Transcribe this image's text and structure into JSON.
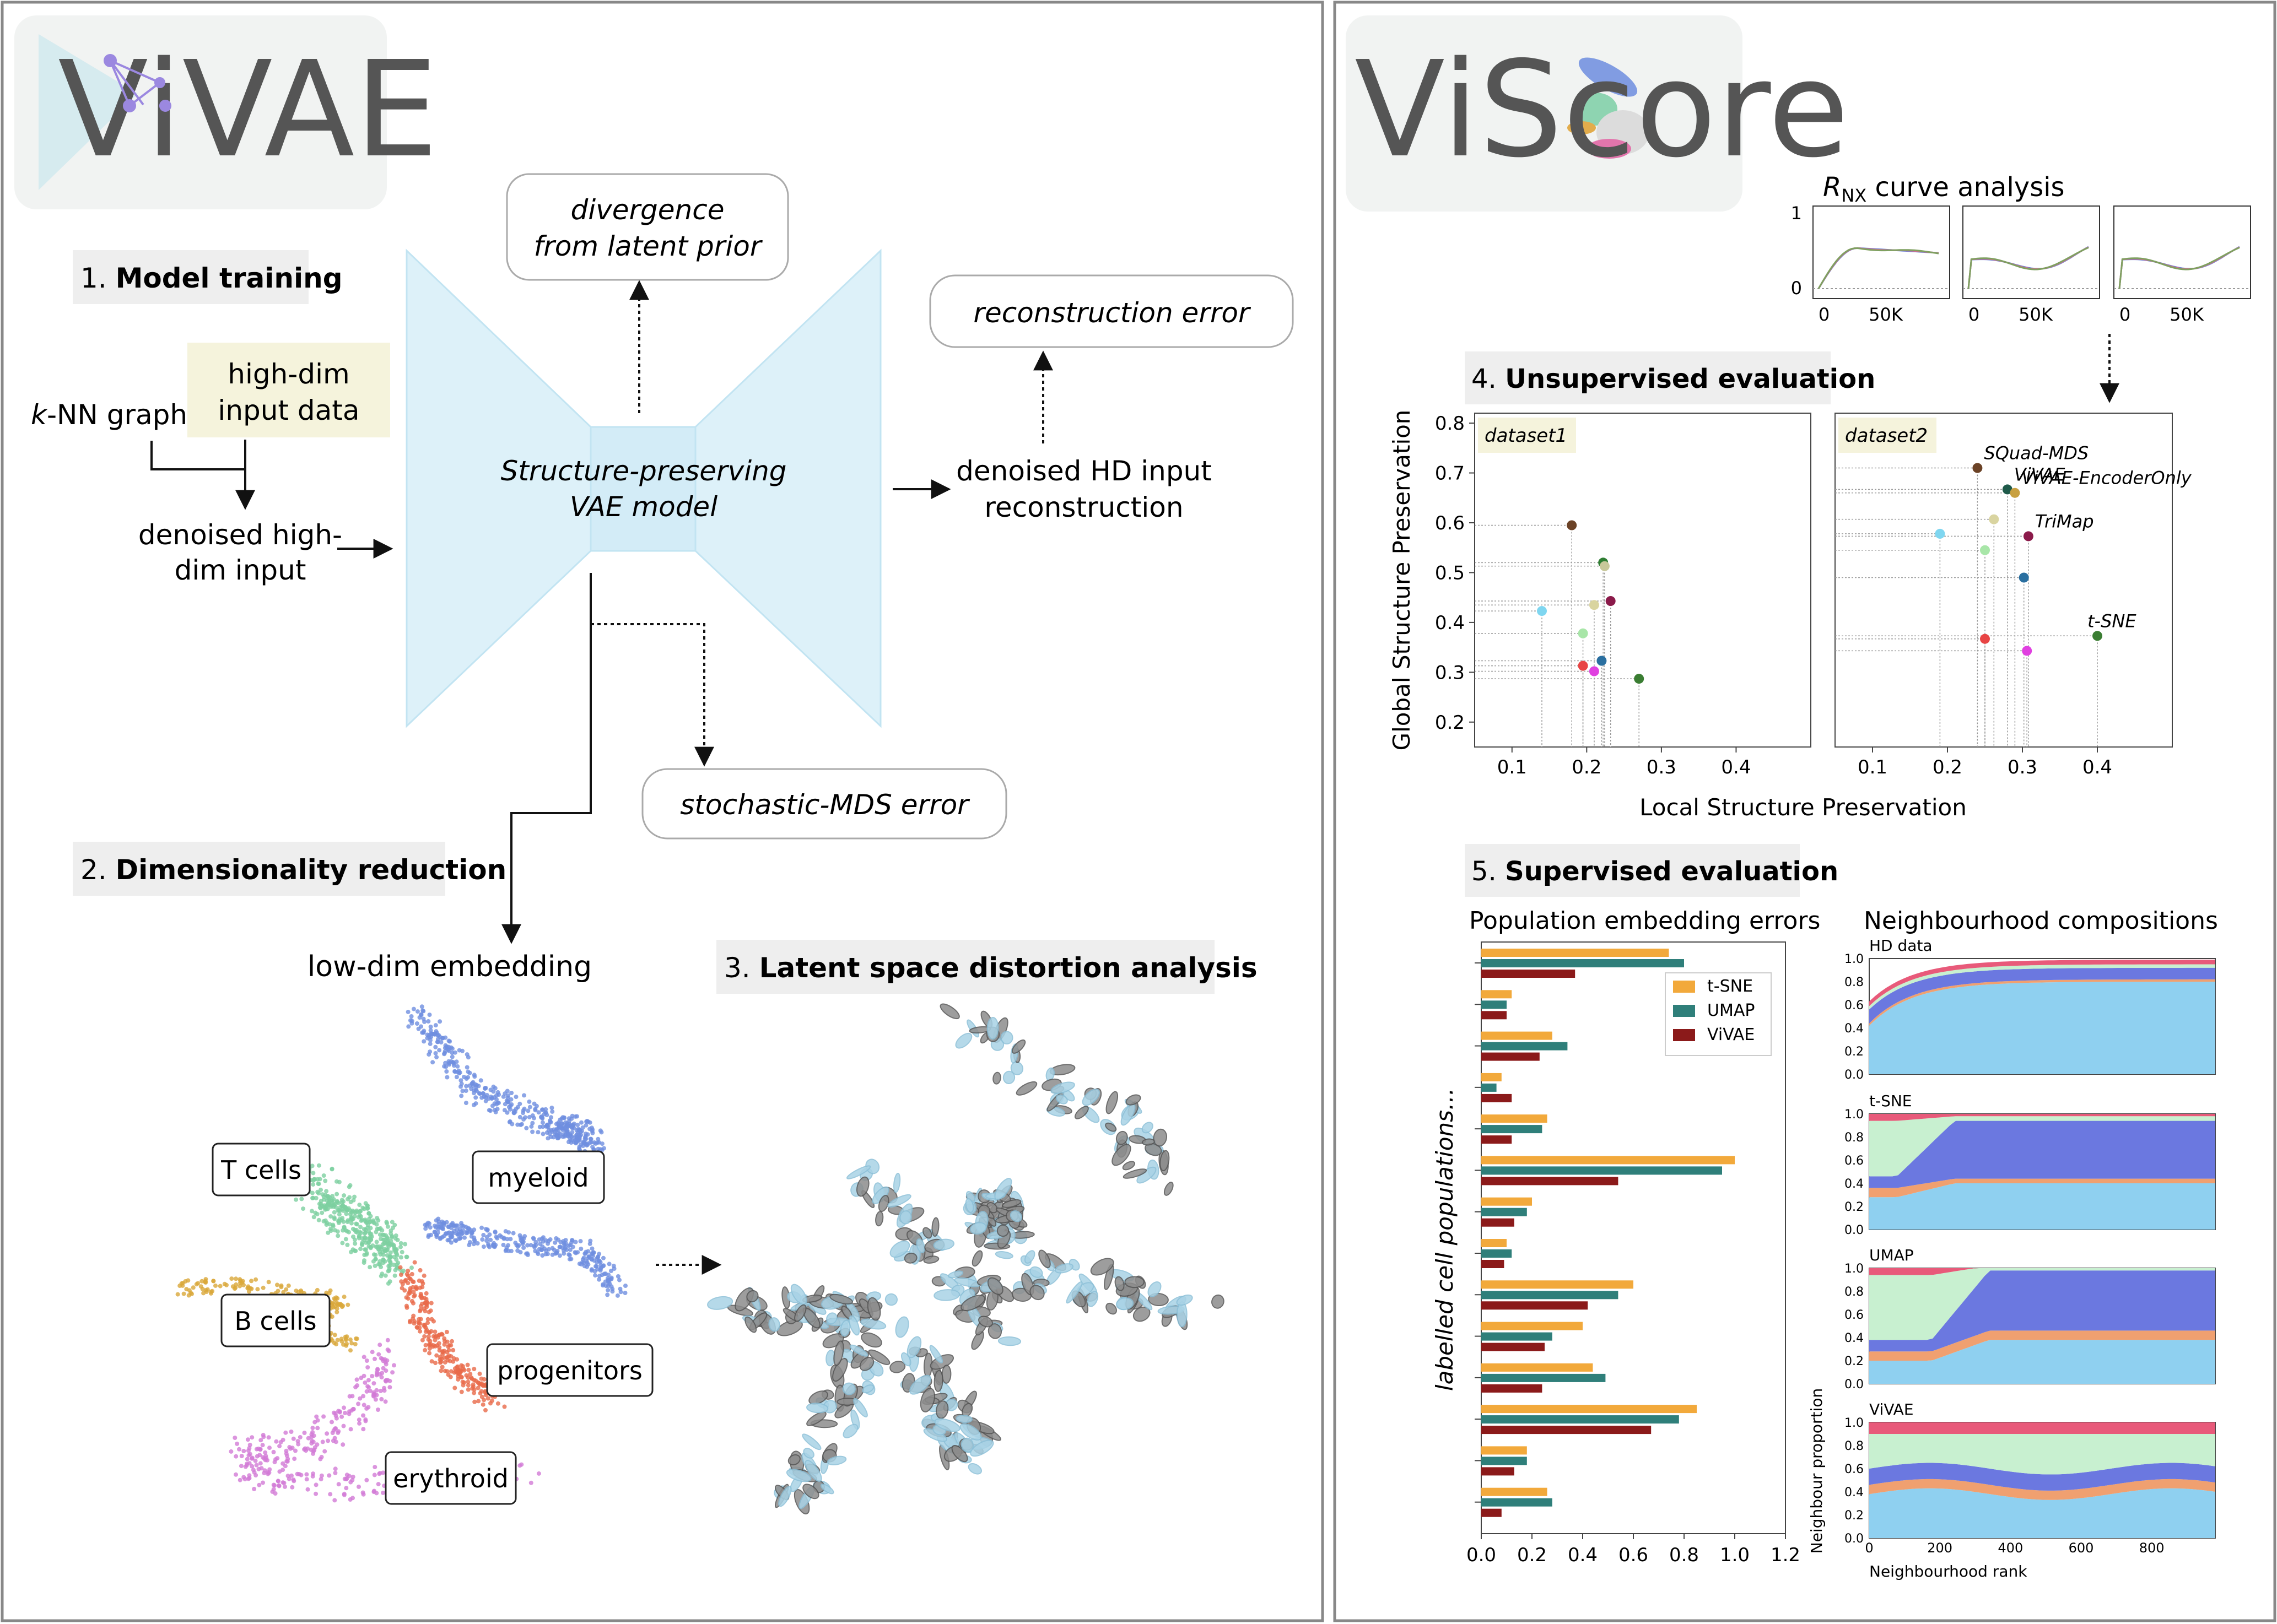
{
  "left_panel": {
    "logo": "ViVAE",
    "step1": {
      "num": "1.",
      "title": "Model training"
    },
    "knn": {
      "k": "k",
      "rest": "-NN graph"
    },
    "highdim": [
      "high-dim",
      "input data"
    ],
    "denoised_input": [
      "denoised high-",
      "dim input"
    ],
    "model": [
      "Structure-preserving",
      "VAE model"
    ],
    "divergence": [
      "divergence",
      "from latent prior"
    ],
    "recon_error": "reconstruction error",
    "denoised_out": [
      "denoised HD input",
      "reconstruction"
    ],
    "smds_error": "stochastic-MDS error",
    "step2": {
      "num": "2.",
      "title": "Dimensionality reduction"
    },
    "lowdim": "low-dim embedding",
    "step3": {
      "num": "3.",
      "title": "Latent space distortion analysis"
    },
    "clusters": {
      "tcells": "T cells",
      "bcells": "B cells",
      "myeloid": "myeloid",
      "progenitors": "progenitors",
      "erythroid": "erythroid"
    }
  },
  "right_panel": {
    "logo": "ViScore",
    "rnx": {
      "title_sym": "R",
      "title_sub": "NX",
      "title_rest": " curve analysis",
      "yticks": [
        "1",
        "0"
      ],
      "xticks": [
        "0",
        "50K"
      ]
    },
    "step4": {
      "num": "4.",
      "title": "Unsupervised evaluation"
    },
    "step5": {
      "num": "5.",
      "title": "Supervised evaluation"
    },
    "pop_title": "Population embedding errors",
    "neigh_title": "Neighbourhood compositions",
    "neigh_panels": [
      "HD data",
      "t-SNE",
      "UMAP",
      "ViVAE"
    ],
    "neigh_ylabel": "Neighbour proportion",
    "neigh_xlabel": "Neighbourhood rank",
    "neigh_yticks": [
      "0.0",
      "0.2",
      "0.4",
      "0.6",
      "0.8",
      "1.0"
    ],
    "neigh_xticks": [
      "0",
      "200",
      "400",
      "600",
      "800"
    ],
    "pop_ylabel": "labelled cell populations..."
  },
  "chart_data": [
    {
      "type": "scatter",
      "title": "dataset1",
      "xlabel": "Local Structure Preservation",
      "ylabel": "Global Structure Preservation",
      "xlim": [
        0.05,
        0.5
      ],
      "ylim": [
        0.15,
        0.82
      ],
      "xticks": [
        "0.1",
        "0.2",
        "0.3",
        "0.4"
      ],
      "yticks": [
        "0.2",
        "0.3",
        "0.4",
        "0.5",
        "0.6",
        "0.7",
        "0.8"
      ],
      "points": [
        {
          "x": 0.18,
          "y": 0.595,
          "color": "#6b4226"
        },
        {
          "x": 0.222,
          "y": 0.52,
          "color": "#2e7d32"
        },
        {
          "x": 0.224,
          "y": 0.513,
          "color": "#c8c89a"
        },
        {
          "x": 0.21,
          "y": 0.435,
          "color": "#d9d4a0"
        },
        {
          "x": 0.232,
          "y": 0.443,
          "color": "#8b1a4a"
        },
        {
          "x": 0.14,
          "y": 0.423,
          "color": "#7fd6f0"
        },
        {
          "x": 0.195,
          "y": 0.378,
          "color": "#a8e6a8"
        },
        {
          "x": 0.22,
          "y": 0.323,
          "color": "#2a6fa0"
        },
        {
          "x": 0.195,
          "y": 0.313,
          "color": "#e84545"
        },
        {
          "x": 0.21,
          "y": 0.302,
          "color": "#e040e0"
        },
        {
          "x": 0.27,
          "y": 0.287,
          "color": "#3a7d32"
        }
      ]
    },
    {
      "type": "scatter",
      "title": "dataset2",
      "xlim": [
        0.05,
        0.5
      ],
      "ylim": [
        0.15,
        0.82
      ],
      "xticks": [
        "0.1",
        "0.2",
        "0.3",
        "0.4"
      ],
      "points": [
        {
          "x": 0.24,
          "y": 0.71,
          "color": "#6b4226",
          "label": "SQuad-MDS"
        },
        {
          "x": 0.28,
          "y": 0.667,
          "color": "#1f5a4a",
          "label": "ViVAE"
        },
        {
          "x": 0.29,
          "y": 0.66,
          "color": "#c8a040",
          "label": "ViVAE-EncoderOnly"
        },
        {
          "x": 0.262,
          "y": 0.607,
          "color": "#d9d4a0"
        },
        {
          "x": 0.308,
          "y": 0.573,
          "color": "#8b1a4a",
          "label": "TriMap"
        },
        {
          "x": 0.19,
          "y": 0.578,
          "color": "#7fd6f0"
        },
        {
          "x": 0.25,
          "y": 0.545,
          "color": "#a8e6a8"
        },
        {
          "x": 0.302,
          "y": 0.49,
          "color": "#2a6fa0"
        },
        {
          "x": 0.4,
          "y": 0.373,
          "color": "#3a7d32",
          "label": "t-SNE"
        },
        {
          "x": 0.25,
          "y": 0.367,
          "color": "#e84545"
        },
        {
          "x": 0.306,
          "y": 0.343,
          "color": "#e040e0"
        }
      ]
    },
    {
      "type": "bar",
      "orientation": "horizontal",
      "title": "Population embedding errors",
      "xlim": [
        0,
        1.2
      ],
      "xticks": [
        "0.0",
        "0.2",
        "0.4",
        "0.6",
        "0.8",
        "1.0",
        "1.2"
      ],
      "legend": "top-right",
      "series": [
        {
          "name": "t-SNE",
          "color": "#f2a93b",
          "values": [
            0.74,
            0.12,
            0.28,
            0.08,
            0.26,
            1.0,
            0.2,
            0.1,
            0.6,
            0.4,
            0.44,
            0.85,
            0.18,
            0.26
          ]
        },
        {
          "name": "UMAP",
          "color": "#2f7f7a",
          "values": [
            0.8,
            0.1,
            0.34,
            0.06,
            0.24,
            0.95,
            0.18,
            0.12,
            0.54,
            0.28,
            0.49,
            0.78,
            0.18,
            0.28
          ]
        },
        {
          "name": "ViVAE",
          "color": "#8b1a1a",
          "values": [
            0.37,
            0.1,
            0.23,
            0.12,
            0.12,
            0.54,
            0.13,
            0.09,
            0.42,
            0.25,
            0.24,
            0.67,
            0.13,
            0.08
          ]
        }
      ]
    }
  ]
}
